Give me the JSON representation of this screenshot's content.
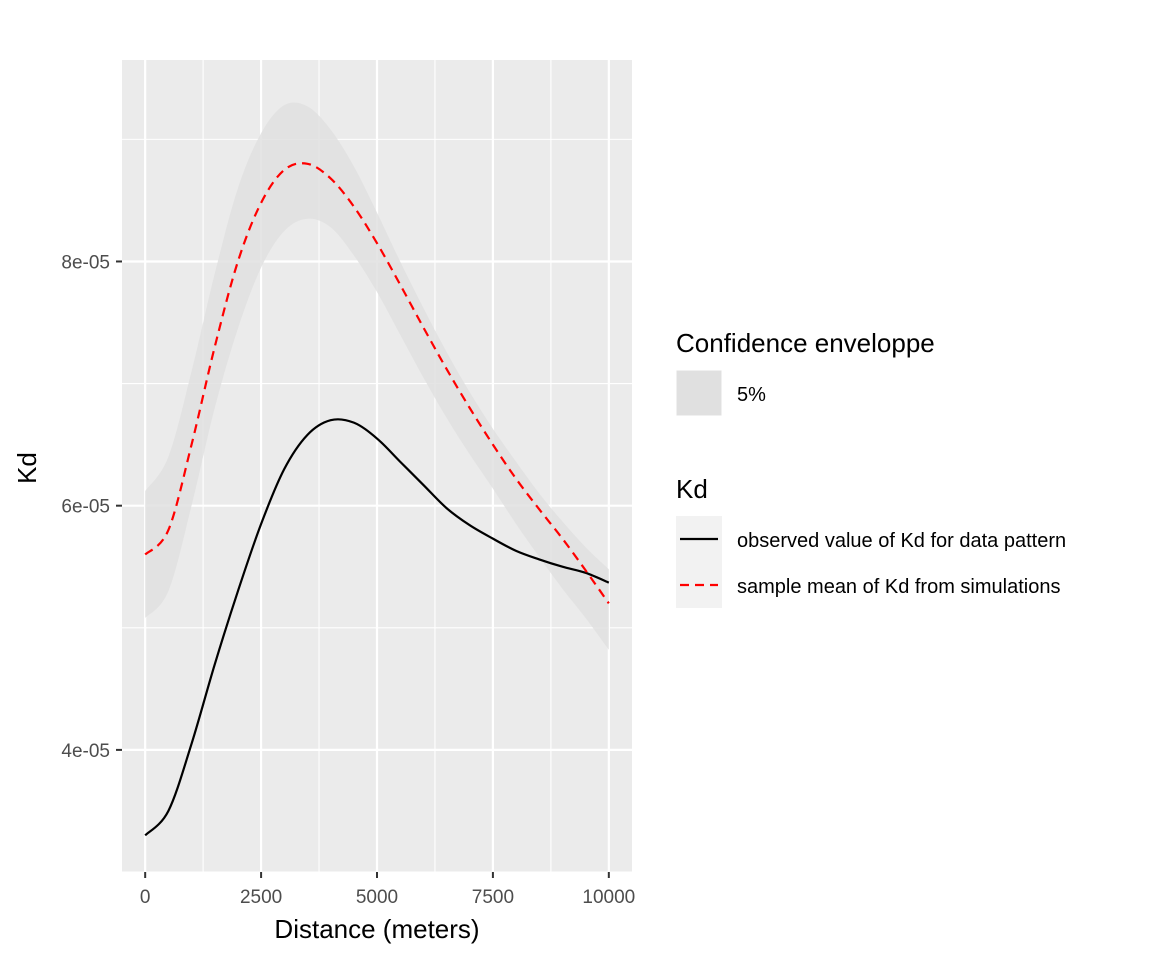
{
  "chart_data": {
    "type": "line",
    "title": "",
    "xlabel": "Distance (meters)",
    "ylabel": "Kd",
    "xlim": [
      -500,
      10500
    ],
    "ylim": [
      3e-05,
      9.65e-05
    ],
    "x_ticks": [
      0,
      2500,
      5000,
      7500,
      10000
    ],
    "x_tick_labels": [
      "0",
      "2500",
      "5000",
      "7500",
      "10000"
    ],
    "y_ticks": [
      4e-05,
      6e-05,
      8e-05
    ],
    "y_tick_labels": [
      "4e-05",
      "6e-05",
      "8e-05"
    ],
    "grid": true,
    "legend_position": "right",
    "x": [
      0,
      500,
      1000,
      1500,
      2000,
      2500,
      3000,
      3500,
      4000,
      4500,
      5000,
      5500,
      6000,
      6500,
      7000,
      7500,
      8000,
      8500,
      9000,
      9500,
      10000
    ],
    "series": [
      {
        "name": "observed value of Kd for data pattern",
        "color": "#000000",
        "dash": "solid",
        "values": [
          3.3e-05,
          3.5e-05,
          4.05e-05,
          4.7e-05,
          5.3e-05,
          5.85e-05,
          6.3e-05,
          6.58e-05,
          6.7e-05,
          6.68e-05,
          6.55e-05,
          6.36e-05,
          6.17e-05,
          5.98e-05,
          5.84e-05,
          5.73e-05,
          5.63e-05,
          5.56e-05,
          5.5e-05,
          5.45e-05,
          5.37e-05
        ]
      },
      {
        "name": "sample mean of Kd from simulations",
        "color": "#ff0000",
        "dash": "dashed",
        "values": [
          5.6e-05,
          5.8e-05,
          6.5e-05,
          7.3e-05,
          8e-05,
          8.48e-05,
          8.75e-05,
          8.8e-05,
          8.68e-05,
          8.45e-05,
          8.15e-05,
          7.81e-05,
          7.46e-05,
          7.12e-05,
          6.8e-05,
          6.5e-05,
          6.22e-05,
          5.97e-05,
          5.73e-05,
          5.47e-05,
          5.2e-05
        ]
      }
    ],
    "envelope": {
      "name": "5%",
      "color": "#e0e0e0",
      "upper": [
        6.12e-05,
        6.4e-05,
        7.1e-05,
        7.9e-05,
        8.6e-05,
        9.05e-05,
        9.28e-05,
        9.27e-05,
        9.08e-05,
        8.78e-05,
        8.4e-05,
        8e-05,
        7.62e-05,
        7.26e-05,
        6.93e-05,
        6.63e-05,
        6.36e-05,
        6.1e-05,
        5.87e-05,
        5.66e-05,
        5.48e-05
      ],
      "lower": [
        5.08e-05,
        5.3e-05,
        6e-05,
        6.8e-05,
        7.45e-05,
        7.95e-05,
        8.25e-05,
        8.35e-05,
        8.28e-05,
        8.05e-05,
        7.75e-05,
        7.4e-05,
        7.05e-05,
        6.72e-05,
        6.42e-05,
        6.14e-05,
        5.85e-05,
        5.58e-05,
        5.32e-05,
        5.08e-05,
        4.82e-05
      ]
    },
    "legend": {
      "envelope_title": "Confidence enveloppe",
      "envelope_label": "5%",
      "lines_title": "Kd",
      "line_labels": [
        "observed value of Kd for data pattern",
        "sample mean of Kd from simulations"
      ]
    }
  }
}
